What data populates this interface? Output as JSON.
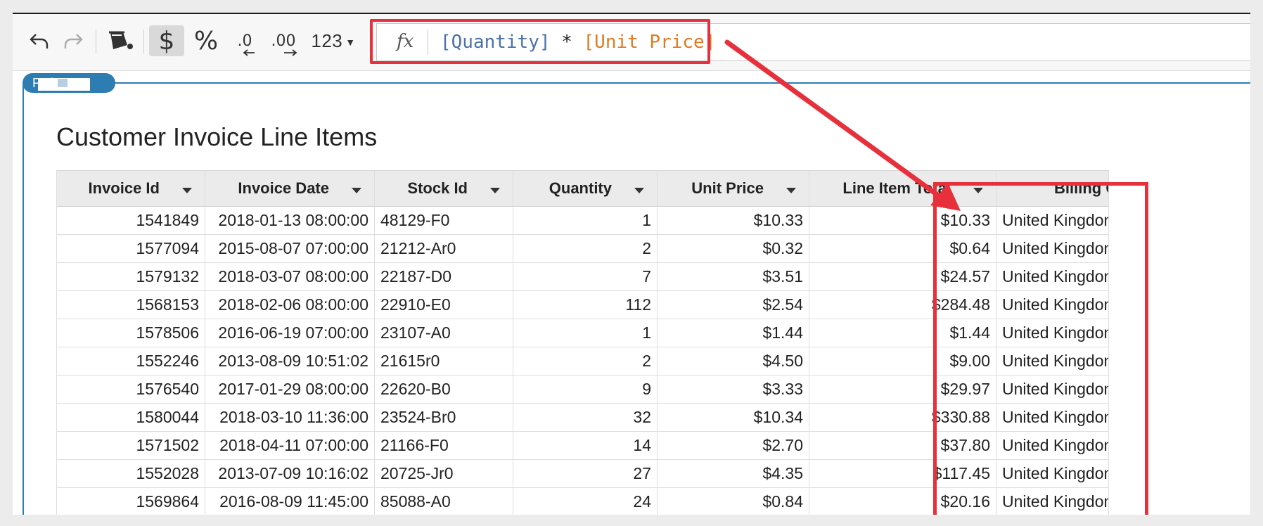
{
  "toolbar": {
    "undo": "undo-icon",
    "redo": "redo-icon",
    "fill": "paint-bucket-icon",
    "currency_label": "$",
    "percent_label": "%",
    "decrease_decimals_label": ".0",
    "increase_decimals_label": ".00",
    "number_format_label": "123"
  },
  "formula": {
    "fx_label": "fx",
    "ref1": "[Quantity]",
    "operator": " * ",
    "ref2": "[Unit Price]"
  },
  "element_tag": {
    "label": "F        ai"
  },
  "table": {
    "title": "Customer Invoice Line Items",
    "columns": [
      "Invoice Id",
      "Invoice Date",
      "Stock Id",
      "Quantity",
      "Unit Price",
      "Line Item Total",
      "Billing Co"
    ],
    "rows": [
      [
        "1541849",
        "2018-01-13 08:00:00",
        "48129-F0",
        "1",
        "$10.33",
        "$10.33",
        "United Kingdom"
      ],
      [
        "1577094",
        "2015-08-07 07:00:00",
        "21212-Ar0",
        "2",
        "$0.32",
        "$0.64",
        "United Kingdom"
      ],
      [
        "1579132",
        "2018-03-07 08:00:00",
        "22187-D0",
        "7",
        "$3.51",
        "$24.57",
        "United Kingdom"
      ],
      [
        "1568153",
        "2018-02-06 08:00:00",
        "22910-E0",
        "112",
        "$2.54",
        "$284.48",
        "United Kingdom"
      ],
      [
        "1578506",
        "2016-06-19 07:00:00",
        "23107-A0",
        "1",
        "$1.44",
        "$1.44",
        "United Kingdom"
      ],
      [
        "1552246",
        "2013-08-09 10:51:02",
        "21615r0",
        "2",
        "$4.50",
        "$9.00",
        "United Kingdom"
      ],
      [
        "1576540",
        "2017-01-29 08:00:00",
        "22620-B0",
        "9",
        "$3.33",
        "$29.97",
        "United Kingdom"
      ],
      [
        "1580044",
        "2018-03-10 11:36:00",
        "23524-Br0",
        "32",
        "$10.34",
        "$330.88",
        "United Kingdom"
      ],
      [
        "1571502",
        "2018-04-11 07:00:00",
        "21166-F0",
        "14",
        "$2.70",
        "$37.80",
        "United Kingdom"
      ],
      [
        "1552028",
        "2013-07-09 10:16:02",
        "20725-Jr0",
        "27",
        "$4.35",
        "$117.45",
        "United Kingdom"
      ],
      [
        "1569864",
        "2016-08-09 11:45:00",
        "85088-A0",
        "24",
        "$0.84",
        "$20.16",
        "United Kingdom"
      ]
    ]
  },
  "colors": {
    "annotation": "#e8303d",
    "element_accent": "#2d7cb2",
    "ref_blue": "#4a72a8",
    "ref_orange": "#e07b22"
  }
}
